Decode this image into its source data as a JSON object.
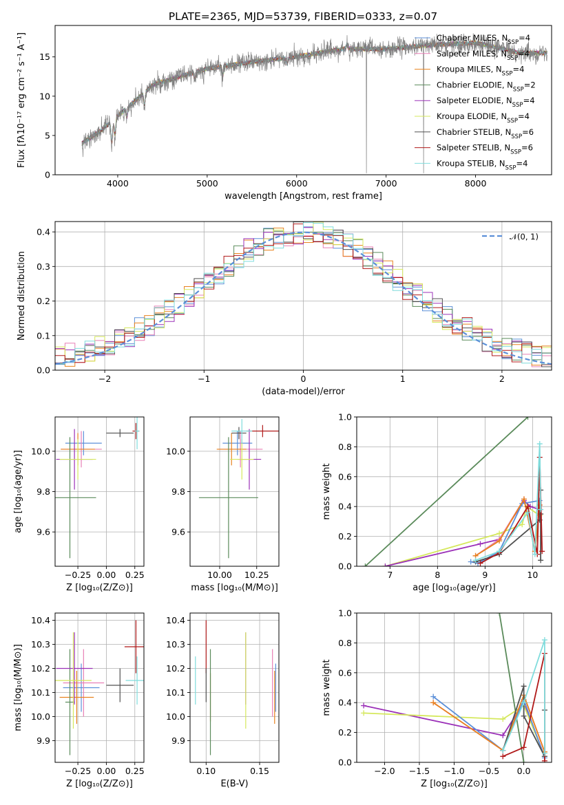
{
  "title": "PLATE=2365, MJD=53739, FIBERID=0333, z=0.07",
  "colors": {
    "chabrier_miles": "#5b8fd8",
    "salpeter_miles": "#e87fb5",
    "kroupa_miles": "#e8821e",
    "chabrier_elodie": "#5a8a5a",
    "salpeter_elodie": "#9b30b8",
    "kroupa_elodie": "#d5e85c",
    "chabrier_stelib": "#505050",
    "salpeter_stelib": "#b01818",
    "kroupa_stelib": "#7fdcdc",
    "data": "#808080",
    "normal": "#5b8fd8",
    "grid": "#b0b0b0"
  },
  "chart_data": [
    {
      "type": "line",
      "xlabel": "wavelength [Angstrom, rest frame]",
      "ylabel": "Flux [fλ10⁻¹⁷ erg cm⁻² s⁻¹ A⁻¹]",
      "xlim": [
        3300,
        8850
      ],
      "ylim": [
        0,
        19
      ],
      "xticks": [
        "4000",
        "5000",
        "6000",
        "7000",
        "8000"
      ],
      "yticks": [
        "0",
        "5",
        "10",
        "15"
      ],
      "spectrum_shape": {
        "x": [
          3600,
          3800,
          4000,
          4200,
          4400,
          4700,
          5000,
          5300,
          5600,
          6000,
          6500,
          7000,
          7500,
          8000,
          8500
        ],
        "y": [
          4,
          5.5,
          7.5,
          9.5,
          11.5,
          12.5,
          13.5,
          14,
          14.5,
          15,
          16,
          16,
          16.5,
          16.8,
          15.5
        ]
      },
      "legend": [
        {
          "label": "Chabrier MILES, N",
          "sub": "SSP",
          "n": "=4"
        },
        {
          "label": "Salpeter MILES, N",
          "sub": "SSP",
          "n": "=4"
        },
        {
          "label": "Kroupa MILES, N",
          "sub": "SSP",
          "n": "=4"
        },
        {
          "label": "Chabrier ELODIE, N",
          "sub": "SSP",
          "n": "=2"
        },
        {
          "label": "Salpeter ELODIE, N",
          "sub": "SSP",
          "n": "=4"
        },
        {
          "label": "Kroupa ELODIE, N",
          "sub": "SSP",
          "n": "=4"
        },
        {
          "label": "Chabrier STELIB, N",
          "sub": "SSP",
          "n": "=6"
        },
        {
          "label": "Salpeter STELIB, N",
          "sub": "SSP",
          "n": "=6"
        },
        {
          "label": "Kroupa STELIB, N",
          "sub": "SSP",
          "n": "=4"
        }
      ]
    },
    {
      "type": "area",
      "xlabel": "(data-model)/error",
      "ylabel": "Normed distribution",
      "xlim": [
        -2.5,
        2.5
      ],
      "ylim": [
        0,
        0.43
      ],
      "xticks": [
        "−2",
        "−1",
        "0",
        "1",
        "2"
      ],
      "yticks": [
        "0.0",
        "0.1",
        "0.2",
        "0.3",
        "0.4"
      ],
      "legend": "𝒩(0, 1)",
      "bin_width": 0.1
    },
    {
      "type": "scatter",
      "xlabel": "Z [log₁₀(Z/Z⊙)]",
      "ylabel": "age  [log₁₀(age/yr)]",
      "xlim": [
        -0.45,
        0.33
      ],
      "ylim": [
        9.43,
        10.17
      ],
      "xticks": [
        "−0.25",
        "0.00",
        "0.25"
      ],
      "xtick_values": [
        -0.25,
        0,
        0.25
      ],
      "yticks": [
        "9.6",
        "9.8",
        "10.0"
      ],
      "ytick_values": [
        9.6,
        9.8,
        10.0
      ],
      "points": [
        {
          "c": "chabrier_miles",
          "x": -0.2,
          "y": 10.04,
          "ex": 0.16,
          "ey": 0.06
        },
        {
          "c": "salpeter_miles",
          "x": -0.22,
          "y": 10.01,
          "ex": 0.18,
          "ey": 0.09
        },
        {
          "c": "kroupa_miles",
          "x": -0.25,
          "y": 10.01,
          "ex": 0.15,
          "ey": 0.08
        },
        {
          "c": "chabrier_elodie",
          "x": -0.32,
          "y": 9.77,
          "ex": 0.23,
          "ey": 0.3
        },
        {
          "c": "salpeter_elodie",
          "x": -0.28,
          "y": 9.96,
          "ex": 0.16,
          "ey": 0.15
        },
        {
          "c": "kroupa_elodie",
          "x": -0.25,
          "y": 9.96,
          "ex": 0.16,
          "ey": 0.1
        },
        {
          "c": "chabrier_stelib",
          "x": 0.12,
          "y": 10.09,
          "ex": 0.12,
          "ey": 0.02
        },
        {
          "c": "salpeter_stelib",
          "x": 0.26,
          "y": 10.1,
          "ex": 0.03,
          "ey": 0.04
        },
        {
          "c": "kroupa_stelib",
          "x": 0.27,
          "y": 10.1,
          "ex": 0.02,
          "ey": 0.09
        }
      ]
    },
    {
      "type": "scatter",
      "xlabel": "mass [log₁₀(M/M⊙)]",
      "ylabel": "",
      "xlim": [
        9.8,
        10.4
      ],
      "ylim": [
        9.43,
        10.17
      ],
      "xticks": [
        "10.00",
        "10.25"
      ],
      "xtick_values": [
        10.0,
        10.25
      ],
      "yticks": [
        "9.6",
        "9.8",
        "10.0"
      ],
      "ytick_values": [
        9.6,
        9.8,
        10.0
      ],
      "points": [
        {
          "c": "chabrier_miles",
          "x": 10.12,
          "y": 10.04,
          "ex": 0.1,
          "ey": 0.06
        },
        {
          "c": "salpeter_miles",
          "x": 10.14,
          "y": 10.01,
          "ex": 0.15,
          "ey": 0.09
        },
        {
          "c": "kroupa_miles",
          "x": 10.08,
          "y": 10.01,
          "ex": 0.1,
          "ey": 0.08
        },
        {
          "c": "chabrier_elodie",
          "x": 10.06,
          "y": 9.77,
          "ex": 0.2,
          "ey": 0.3
        },
        {
          "c": "salpeter_elodie",
          "x": 10.2,
          "y": 9.96,
          "ex": 0.08,
          "ey": 0.15
        },
        {
          "c": "kroupa_elodie",
          "x": 10.15,
          "y": 9.96,
          "ex": 0.08,
          "ey": 0.1
        },
        {
          "c": "chabrier_stelib",
          "x": 10.13,
          "y": 10.09,
          "ex": 0.05,
          "ey": 0.03
        },
        {
          "c": "salpeter_stelib",
          "x": 10.29,
          "y": 10.1,
          "ex": 0.11,
          "ey": 0.03
        },
        {
          "c": "kroupa_stelib",
          "x": 10.15,
          "y": 10.1,
          "ex": 0.07,
          "ey": 0.06
        }
      ]
    },
    {
      "type": "line",
      "xlabel": "age  [log₁₀(age/yr)]",
      "ylabel": "mass weight",
      "xlim": [
        6.3,
        10.4
      ],
      "ylim": [
        0,
        1
      ],
      "xticks": [
        "7",
        "8",
        "9",
        "10"
      ],
      "xtick_values": [
        7,
        8,
        9,
        10
      ],
      "yticks": [
        "0.0",
        "0.2",
        "0.4",
        "0.6",
        "0.8",
        "1.0"
      ],
      "ytick_values": [
        0,
        0.2,
        0.4,
        0.6,
        0.8,
        1.0
      ],
      "series": [
        {
          "c": "chabrier_elodie",
          "x": [
            6.48,
            9.9
          ],
          "y": [
            0.0,
            1.0
          ]
        },
        {
          "c": "kroupa_elodie",
          "x": [
            6.9,
            9.3,
            9.78,
            9.88,
            10.15
          ],
          "y": [
            0.0,
            0.22,
            0.28,
            0.4,
            0.34
          ]
        },
        {
          "c": "salpeter_elodie",
          "x": [
            6.9,
            8.9,
            9.3,
            9.82,
            9.95,
            10.15
          ],
          "y": [
            0.0,
            0.15,
            0.18,
            0.44,
            0.4,
            0.38
          ]
        },
        {
          "c": "chabrier_miles",
          "x": [
            8.7,
            8.85,
            9.3,
            9.78,
            10.15
          ],
          "y": [
            0.03,
            0.02,
            0.1,
            0.42,
            0.44
          ]
        },
        {
          "c": "salpeter_miles",
          "x": [
            8.8,
            9.3,
            9.82,
            10.05,
            10.15
          ],
          "y": [
            0.07,
            0.18,
            0.45,
            0.1,
            0.41
          ]
        },
        {
          "c": "kroupa_miles",
          "x": [
            8.8,
            9.3,
            9.82,
            10.05,
            10.15
          ],
          "y": [
            0.07,
            0.17,
            0.45,
            0.1,
            0.41
          ]
        },
        {
          "c": "chabrier_stelib",
          "x": [
            8.8,
            9.3,
            10.15,
            10.17,
            10.17,
            10.17
          ],
          "y": [
            0.03,
            0.08,
            0.31,
            0.51,
            0.04,
            0.35
          ]
        },
        {
          "c": "salpeter_stelib",
          "x": [
            8.9,
            9.3,
            9.9,
            10.1,
            10.15,
            10.2
          ],
          "y": [
            0.02,
            0.09,
            0.4,
            0.08,
            0.73,
            0.1
          ]
        },
        {
          "c": "kroupa_stelib",
          "x": [
            8.8,
            9.3,
            9.9,
            10.05,
            10.15,
            10.17
          ],
          "y": [
            0.04,
            0.1,
            0.36,
            0.08,
            0.82,
            0.38
          ]
        }
      ]
    },
    {
      "type": "scatter",
      "xlabel": "Z [log₁₀(Z/Z⊙)]",
      "ylabel": "mass [log₁₀(M/M⊙)]",
      "xlim": [
        -0.45,
        0.33
      ],
      "ylim": [
        9.81,
        10.43
      ],
      "xticks": [
        "−0.25",
        "0.00",
        "0.25"
      ],
      "xtick_values": [
        -0.25,
        0,
        0.25
      ],
      "yticks": [
        "9.9",
        "10.0",
        "10.1",
        "10.2",
        "10.3",
        "10.4"
      ],
      "ytick_values": [
        9.9,
        10.0,
        10.1,
        10.2,
        10.3,
        10.4
      ],
      "points": [
        {
          "c": "chabrier_miles",
          "x": -0.22,
          "y": 10.12,
          "ex": 0.16,
          "ey": 0.1
        },
        {
          "c": "salpeter_miles",
          "x": -0.2,
          "y": 10.14,
          "ex": 0.18,
          "ey": 0.14
        },
        {
          "c": "kroupa_miles",
          "x": -0.26,
          "y": 10.08,
          "ex": 0.15,
          "ey": 0.11
        },
        {
          "c": "chabrier_elodie",
          "x": -0.32,
          "y": 10.06,
          "ex": 0.04,
          "ey": 0.22
        },
        {
          "c": "salpeter_elodie",
          "x": -0.28,
          "y": 10.2,
          "ex": 0.16,
          "ey": 0.15
        },
        {
          "c": "kroupa_elodie",
          "x": -0.29,
          "y": 10.15,
          "ex": 0.16,
          "ey": 0.2
        },
        {
          "c": "chabrier_stelib",
          "x": 0.12,
          "y": 10.13,
          "ex": 0.12,
          "ey": 0.07
        },
        {
          "c": "salpeter_stelib",
          "x": 0.26,
          "y": 10.29,
          "ex": 0.1,
          "ey": 0.11
        },
        {
          "c": "kroupa_stelib",
          "x": 0.27,
          "y": 10.15,
          "ex": 0.1,
          "ey": 0.1
        }
      ]
    },
    {
      "type": "scatter",
      "xlabel": "E(B-V)",
      "ylabel": "",
      "xlim": [
        0.085,
        0.168
      ],
      "ylim": [
        9.81,
        10.43
      ],
      "xticks": [
        "0.10",
        "0.15"
      ],
      "xtick_values": [
        0.1,
        0.15
      ],
      "yticks": [
        "9.9",
        "10.0",
        "10.1",
        "10.2",
        "10.3",
        "10.4"
      ],
      "ytick_values": [
        9.9,
        10.0,
        10.1,
        10.2,
        10.3,
        10.4
      ],
      "points": [
        {
          "c": "kroupa_stelib",
          "x": 0.09,
          "y": 10.15,
          "ey": 0.1
        },
        {
          "c": "salpeter_stelib",
          "x": 0.1,
          "y": 10.29,
          "ey": 0.11
        },
        {
          "c": "chabrier_stelib",
          "x": 0.1,
          "y": 10.13,
          "ey": 0.07
        },
        {
          "c": "kroupa_miles",
          "x": 0.104,
          "y": 10.08,
          "ey": 0.1
        },
        {
          "c": "chabrier_elodie",
          "x": 0.104,
          "y": 10.06,
          "ey": 0.22
        },
        {
          "c": "salpeter_elodie",
          "x": 0.137,
          "y": 10.2,
          "ey": 0.15
        },
        {
          "c": "kroupa_elodie",
          "x": 0.137,
          "y": 10.15,
          "ey": 0.2
        },
        {
          "c": "salpeter_miles",
          "x": 0.162,
          "y": 10.14,
          "ey": 0.14
        },
        {
          "c": "kroupa_miles",
          "x": 0.164,
          "y": 10.08,
          "ey": 0.11
        },
        {
          "c": "chabrier_miles",
          "x": 0.165,
          "y": 10.12,
          "ey": 0.1
        }
      ]
    },
    {
      "type": "line",
      "xlabel": "Z [log₁₀(Z/Z⊙)]",
      "ylabel": "mass weight",
      "xlim": [
        -2.4,
        0.4
      ],
      "ylim": [
        0,
        1
      ],
      "xticks": [
        "−2.0",
        "−1.5",
        "−1.0",
        "−0.5",
        "0.0"
      ],
      "xtick_values": [
        -2.0,
        -1.5,
        -1.0,
        -0.5,
        0.0
      ],
      "yticks": [
        "0.0",
        "0.2",
        "0.4",
        "0.6",
        "0.8",
        "1.0"
      ],
      "ytick_values": [
        0,
        0.2,
        0.4,
        0.6,
        0.8,
        1.0
      ],
      "series": [
        {
          "c": "chabrier_elodie",
          "x": [
            -0.35,
            0.0
          ],
          "y": [
            1.0,
            0.0
          ]
        },
        {
          "c": "salpeter_elodie",
          "x": [
            -2.3,
            -0.3,
            0.0,
            0.3
          ],
          "y": [
            0.38,
            0.18,
            0.4,
            0.04
          ]
        },
        {
          "c": "kroupa_elodie",
          "x": [
            -2.3,
            -0.3,
            0.0,
            0.3
          ],
          "y": [
            0.33,
            0.29,
            0.38,
            0.04
          ]
        },
        {
          "c": "chabrier_miles",
          "x": [
            -1.3,
            -0.3,
            0.0,
            0.3
          ],
          "y": [
            0.44,
            0.08,
            0.42,
            0.03
          ]
        },
        {
          "c": "salpeter_miles",
          "x": [
            -1.3,
            -0.3,
            0.0,
            0.3
          ],
          "y": [
            0.4,
            0.08,
            0.45,
            0.07
          ]
        },
        {
          "c": "kroupa_miles",
          "x": [
            -1.3,
            -0.3,
            0.0,
            0.3
          ],
          "y": [
            0.4,
            0.08,
            0.45,
            0.07
          ]
        },
        {
          "c": "chabrier_stelib",
          "x": [
            -0.3,
            0.0,
            0.0,
            0.3,
            0.3
          ],
          "y": [
            0.08,
            0.51,
            0.31,
            0.04,
            0.35
          ]
        },
        {
          "c": "salpeter_stelib",
          "x": [
            -0.3,
            0.0,
            0.3,
            0.3
          ],
          "y": [
            0.04,
            0.1,
            0.73,
            0.01
          ]
        },
        {
          "c": "kroupa_stelib",
          "x": [
            -0.3,
            0.0,
            0.3,
            0.3
          ],
          "y": [
            0.08,
            0.4,
            0.82,
            0.06
          ]
        }
      ]
    }
  ]
}
